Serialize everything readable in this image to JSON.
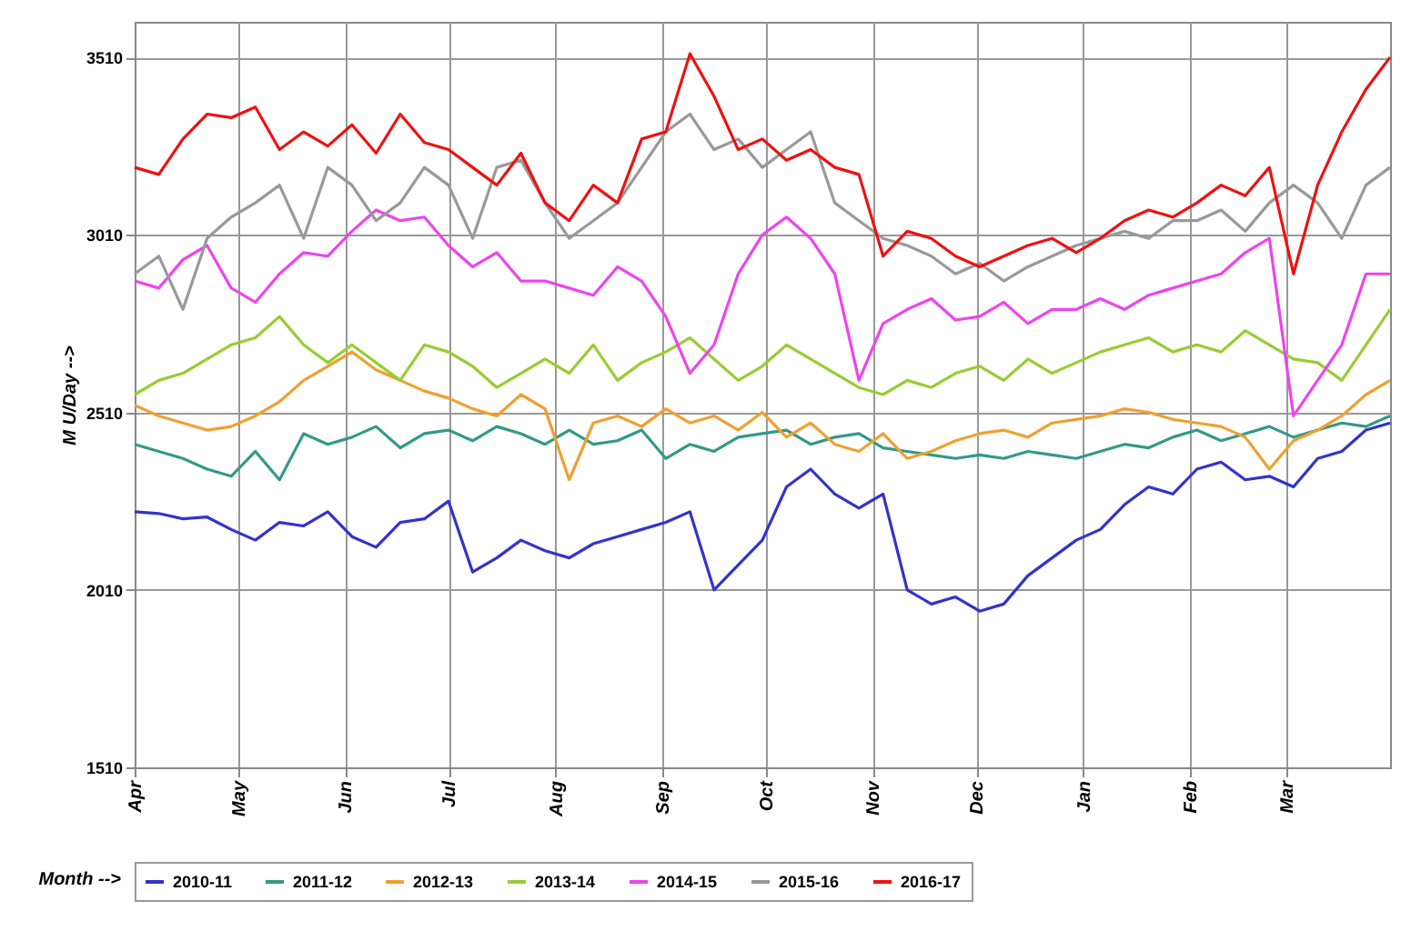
{
  "chart_data": {
    "type": "line",
    "xlabel": "Month -->",
    "ylabel": "M U/Day -->",
    "x": [
      "2016-04-01",
      "2016-04-08",
      "2016-04-15",
      "2016-04-22",
      "2016-04-29",
      "2016-05-06",
      "2016-05-13",
      "2016-05-20",
      "2016-05-27",
      "2016-06-03",
      "2016-06-10",
      "2016-06-17",
      "2016-06-24",
      "2016-07-01",
      "2016-07-08",
      "2016-07-15",
      "2016-07-22",
      "2016-07-29",
      "2016-08-05",
      "2016-08-12",
      "2016-08-19",
      "2016-08-26",
      "2016-09-02",
      "2016-09-09",
      "2016-09-16",
      "2016-09-23",
      "2016-09-30",
      "2016-10-07",
      "2016-10-14",
      "2016-10-21",
      "2016-10-28",
      "2016-11-04",
      "2016-11-11",
      "2016-11-18",
      "2016-11-25",
      "2016-12-02",
      "2016-12-09",
      "2016-12-16",
      "2016-12-23",
      "2016-12-30",
      "2017-01-06",
      "2017-01-13",
      "2017-01-20",
      "2017-01-27",
      "2017-02-03",
      "2017-02-10",
      "2017-02-17",
      "2017-02-24",
      "2017-03-03",
      "2017-03-10",
      "2017-03-17",
      "2017-03-24",
      "2017-03-31"
    ],
    "series": [
      {
        "name": "2010-11",
        "color": "#3333cc",
        "values": [
          2230,
          2225,
          2210,
          2215,
          2180,
          2150,
          2200,
          2190,
          2230,
          2160,
          2130,
          2200,
          2210,
          2260,
          2060,
          2100,
          2150,
          2120,
          2100,
          2140,
          2160,
          2180,
          2200,
          2230,
          2010,
          2080,
          2150,
          2300,
          2350,
          2280,
          2240,
          2280,
          2010,
          1970,
          1990,
          1950,
          1970,
          2050,
          2100,
          2150,
          2180,
          2250,
          2300,
          2280,
          2350,
          2370,
          2320,
          2330,
          2300,
          2380,
          2400,
          2460,
          2480
        ]
      },
      {
        "name": "2011-12",
        "color": "#339988",
        "values": [
          2420,
          2400,
          2380,
          2350,
          2330,
          2400,
          2320,
          2450,
          2420,
          2440,
          2470,
          2410,
          2450,
          2460,
          2430,
          2470,
          2450,
          2420,
          2460,
          2420,
          2430,
          2460,
          2380,
          2420,
          2400,
          2440,
          2450,
          2460,
          2420,
          2440,
          2450,
          2410,
          2400,
          2390,
          2380,
          2390,
          2380,
          2400,
          2390,
          2380,
          2400,
          2420,
          2410,
          2440,
          2460,
          2430,
          2450,
          2470,
          2440,
          2460,
          2480,
          2470,
          2500
        ]
      },
      {
        "name": "2012-13",
        "color": "#f0a030",
        "values": [
          2530,
          2500,
          2480,
          2460,
          2470,
          2500,
          2540,
          2600,
          2640,
          2680,
          2630,
          2600,
          2570,
          2550,
          2520,
          2500,
          2560,
          2520,
          2320,
          2480,
          2500,
          2470,
          2520,
          2480,
          2500,
          2460,
          2510,
          2440,
          2480,
          2420,
          2400,
          2450,
          2380,
          2400,
          2430,
          2450,
          2460,
          2440,
          2480,
          2490,
          2500,
          2520,
          2510,
          2490,
          2480,
          2470,
          2440,
          2350,
          2430,
          2460,
          2500,
          2560,
          2600
        ]
      },
      {
        "name": "2013-14",
        "color": "#99cc33",
        "values": [
          2560,
          2600,
          2620,
          2660,
          2700,
          2720,
          2780,
          2700,
          2650,
          2700,
          2650,
          2600,
          2700,
          2680,
          2640,
          2580,
          2620,
          2660,
          2620,
          2700,
          2600,
          2650,
          2680,
          2720,
          2660,
          2600,
          2640,
          2700,
          2660,
          2620,
          2580,
          2560,
          2600,
          2580,
          2620,
          2640,
          2600,
          2660,
          2620,
          2650,
          2680,
          2700,
          2720,
          2680,
          2700,
          2680,
          2740,
          2700,
          2660,
          2650,
          2600,
          2700,
          2800
        ]
      },
      {
        "name": "2014-15",
        "color": "#ee44ee",
        "values": [
          2880,
          2860,
          2940,
          2980,
          2860,
          2820,
          2900,
          2960,
          2950,
          3020,
          3080,
          3050,
          3060,
          2980,
          2920,
          2960,
          2880,
          2880,
          2860,
          2840,
          2920,
          2880,
          2780,
          2620,
          2700,
          2900,
          3010,
          3060,
          3000,
          2900,
          2600,
          2760,
          2800,
          2830,
          2770,
          2780,
          2820,
          2760,
          2800,
          2800,
          2830,
          2800,
          2840,
          2860,
          2880,
          2900,
          2960,
          3000,
          2500,
          2600,
          2700,
          2900,
          2900
        ]
      },
      {
        "name": "2015-16",
        "color": "#999999",
        "values": [
          2900,
          2950,
          2800,
          3000,
          3060,
          3100,
          3150,
          3000,
          3200,
          3150,
          3050,
          3100,
          3200,
          3150,
          3000,
          3200,
          3220,
          3100,
          3000,
          3050,
          3100,
          3200,
          3300,
          3350,
          3250,
          3280,
          3200,
          3250,
          3300,
          3100,
          3050,
          3000,
          2980,
          2950,
          2900,
          2930,
          2880,
          2920,
          2950,
          2980,
          3000,
          3020,
          3000,
          3050,
          3050,
          3080,
          3020,
          3100,
          3150,
          3100,
          3000,
          3150,
          3200
        ]
      },
      {
        "name": "2016-17",
        "color": "#ee1111",
        "values": [
          3200,
          3180,
          3280,
          3350,
          3340,
          3370,
          3250,
          3300,
          3260,
          3320,
          3240,
          3350,
          3270,
          3250,
          3200,
          3150,
          3240,
          3100,
          3050,
          3150,
          3100,
          3280,
          3300,
          3520,
          3400,
          3250,
          3280,
          3220,
          3250,
          3200,
          3180,
          2950,
          3020,
          3000,
          2950,
          2920,
          2950,
          2980,
          3000,
          2960,
          3000,
          3050,
          3080,
          3060,
          3100,
          3150,
          3120,
          3200,
          2900,
          3150,
          3300,
          3420,
          3510
        ]
      }
    ],
    "xlim": [
      "2016-04-01",
      "2017-03-31"
    ],
    "xticks": [
      {
        "value": "2016-04-01",
        "label": "Apr"
      },
      {
        "value": "2016-05-01",
        "label": "May"
      },
      {
        "value": "2016-06-01",
        "label": "Jun"
      },
      {
        "value": "2016-07-01",
        "label": "Jul"
      },
      {
        "value": "2016-08-01",
        "label": "Aug"
      },
      {
        "value": "2016-09-01",
        "label": "Sep"
      },
      {
        "value": "2016-10-01",
        "label": "Oct"
      },
      {
        "value": "2016-11-01",
        "label": "Nov"
      },
      {
        "value": "2016-12-01",
        "label": "Dec"
      },
      {
        "value": "2017-01-01",
        "label": "Jan"
      },
      {
        "value": "2017-02-01",
        "label": "Feb"
      },
      {
        "value": "2017-03-01",
        "label": "Mar"
      }
    ],
    "ylim": [
      1510,
      3610
    ],
    "yticks": [
      1510,
      2010,
      2510,
      3010,
      3510
    ],
    "grid": true,
    "legend": "bottom",
    "marker": "none",
    "line_style": "solid"
  }
}
